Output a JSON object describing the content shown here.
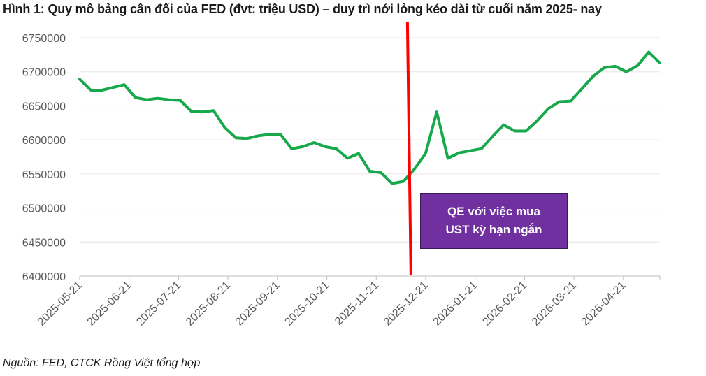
{
  "title": "Hình 1: Quy mô bảng cân đối của FED (đvt: triệu USD) – duy trì nới lỏng kéo dài từ cuối năm 2025- nay",
  "source": "Nguồn: FED, CTCK Rồng Việt tổng hợp",
  "colors": {
    "line": "#16a84a",
    "marker": "#ff0000",
    "annotation_bg": "#7030a0",
    "axis": "#bfbfbf",
    "grid": "#e6e6e6"
  },
  "chart_data": {
    "type": "line",
    "title": "Hình 1: Quy mô bảng cân đối của FED (đvt: triệu USD) – duy trì nới lỏng kéo dài từ cuối năm 2025- nay",
    "xlabel": "",
    "ylabel": "",
    "ylim": [
      6400000,
      6750000
    ],
    "y_ticks": [
      6400000,
      6450000,
      6500000,
      6550000,
      6600000,
      6650000,
      6700000,
      6750000
    ],
    "y_tick_labels": [
      "6400000",
      "6450000",
      "6500000",
      "6550000",
      "6600000",
      "6650000",
      "6700000",
      "6750000"
    ],
    "x_tick_labels": [
      "2025-05-21",
      "2025-06-21",
      "2025-07-21",
      "2025-08-21",
      "2025-09-21",
      "2025-10-21",
      "2025-11-21",
      "2025-12-21",
      "2026-01-21",
      "2026-02-21",
      "2026-03-21",
      "2026-04-21"
    ],
    "grid": true,
    "legend": "none",
    "series": [
      {
        "values": [
          6689000,
          6673000,
          6673000,
          6677000,
          6681000,
          6662000,
          6659000,
          6661000,
          6659000,
          6658000,
          6642000,
          6641000,
          6643000,
          6618000,
          6603000,
          6602000,
          6606000,
          6608000,
          6608000,
          6587000,
          6590000,
          6596000,
          6590000,
          6587000,
          6573000,
          6580000,
          6554000,
          6552000,
          6536000,
          6539000,
          6557000,
          6580000,
          6641000,
          6573000,
          6581000,
          6584000,
          6587000,
          6605000,
          6622000,
          6613000,
          6613000,
          6628000,
          6646000,
          6656000,
          6657000,
          6675000,
          6693000,
          6706000,
          6708000,
          6700000,
          6709000,
          6729000,
          6713000
        ]
      }
    ],
    "vertical_marker_index": 29.5,
    "annotation": {
      "lines": [
        "QE với việc mua",
        "UST kỳ hạn ngắn"
      ]
    }
  }
}
